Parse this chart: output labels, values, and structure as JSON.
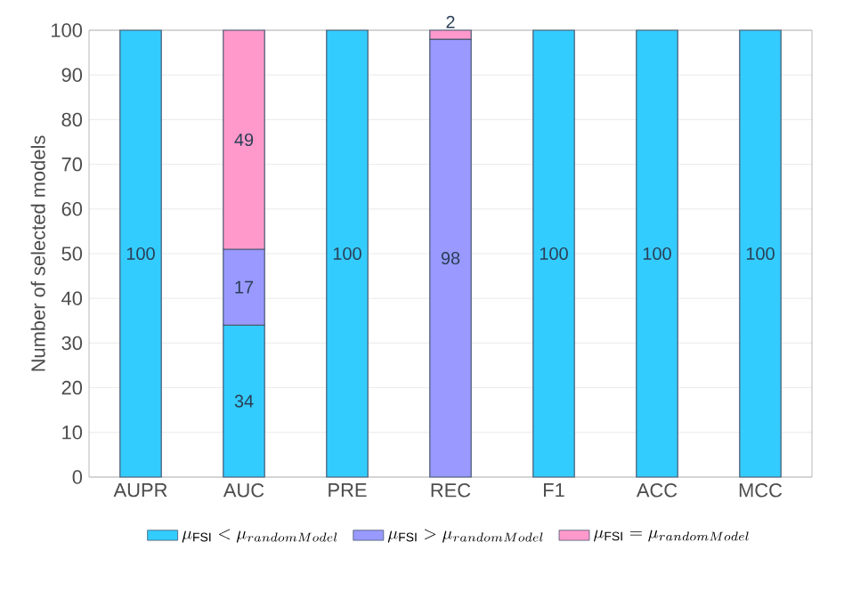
{
  "chart_data": {
    "type": "bar",
    "stacked": true,
    "ylabel": "Number of selected models",
    "categories": [
      "AUPR",
      "AUC",
      "PRE",
      "REC",
      "F1",
      "ACC",
      "MCC"
    ],
    "series": [
      {
        "name": "\\mu_{\\mathrm{FSI}} < \\mu_{randomModel}",
        "color": "#33ccff",
        "values": [
          100,
          34,
          100,
          null,
          100,
          100,
          100
        ]
      },
      {
        "name": "\\mu_{\\mathrm{FSI}} > \\mu_{randomModel}",
        "color": "#9999ff",
        "values": [
          null,
          17,
          null,
          98,
          null,
          null,
          null
        ]
      },
      {
        "name": "\\mu_{\\mathrm{FSI}} = \\mu_{randomModel}",
        "color": "#ff99cc",
        "values": [
          null,
          49,
          null,
          2,
          null,
          null,
          null
        ]
      }
    ],
    "ylim": [
      0,
      100
    ],
    "yticks": [
      0,
      10,
      20,
      30,
      40,
      50,
      60,
      70,
      80,
      90,
      100
    ],
    "grid": "y",
    "legend": "bottom",
    "data_labels": true
  }
}
